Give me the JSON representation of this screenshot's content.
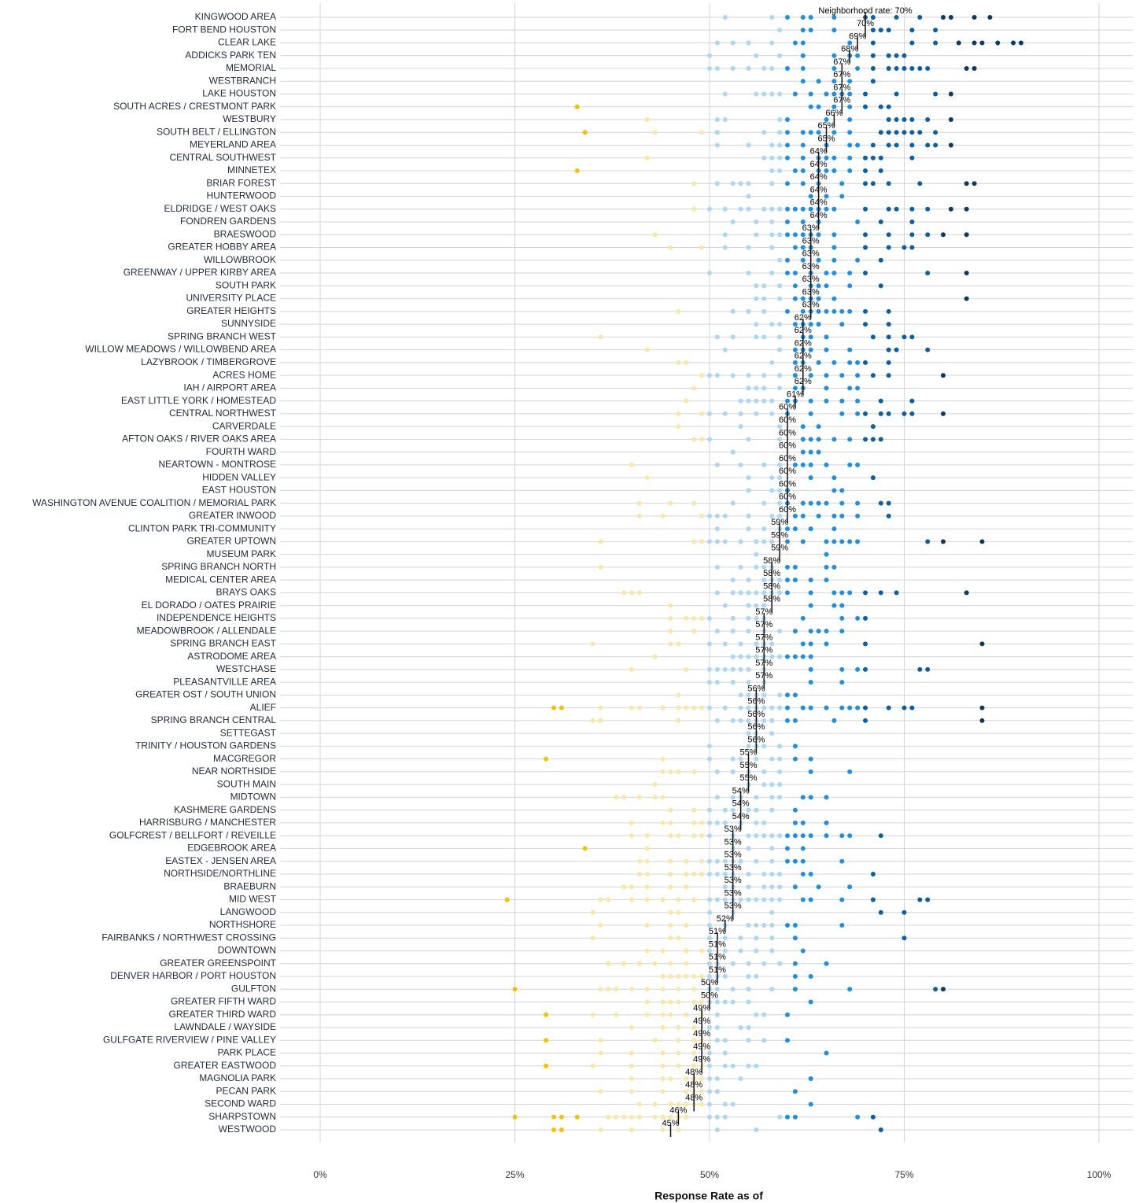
{
  "chart_data": {
    "type": "dot",
    "x_label": "Response Rate as of",
    "xlim": [
      0,
      100
    ],
    "xticks": [
      {
        "value": 0,
        "label": "0%"
      },
      {
        "value": 25,
        "label": "25%"
      },
      {
        "value": 50,
        "label": "50%"
      },
      {
        "value": 75,
        "label": "75%"
      },
      {
        "value": 100,
        "label": "100%"
      }
    ],
    "grid": true,
    "rate_color": "#111111",
    "color_breaks": [
      35,
      50,
      60,
      70,
      80
    ],
    "colors": [
      "#f2c300",
      "#fbe7a2",
      "#a9d7f6",
      "#1f8fe0",
      "#0d5fa3",
      "#0a3a65"
    ],
    "categories": [
      "KINGWOOD AREA",
      "FORT BEND HOUSTON",
      "CLEAR LAKE",
      "ADDICKS PARK TEN",
      "MEMORIAL",
      "WESTBRANCH",
      "LAKE HOUSTON",
      "SOUTH ACRES / CRESTMONT PARK",
      "WESTBURY",
      "SOUTH BELT / ELLINGTON",
      "MEYERLAND AREA",
      "CENTRAL SOUTHWEST",
      "MINNETEX",
      "BRIAR FOREST",
      "HUNTERWOOD",
      "ELDRIDGE / WEST OAKS",
      "FONDREN GARDENS",
      "BRAESWOOD",
      "GREATER HOBBY AREA",
      "WILLOWBROOK",
      "GREENWAY / UPPER KIRBY AREA",
      "SOUTH PARK",
      "UNIVERSITY PLACE",
      "GREATER HEIGHTS",
      "SUNNYSIDE",
      "SPRING BRANCH WEST",
      "WILLOW MEADOWS / WILLOWBEND AREA",
      "LAZYBROOK / TIMBERGROVE",
      "ACRES HOME",
      "IAH / AIRPORT AREA",
      "EAST LITTLE YORK / HOMESTEAD",
      "CENTRAL NORTHWEST",
      "CARVERDALE",
      "AFTON OAKS / RIVER OAKS AREA",
      "FOURTH WARD",
      "NEARTOWN - MONTROSE",
      "HIDDEN VALLEY",
      "EAST HOUSTON",
      "WASHINGTON AVENUE COALITION / MEMORIAL PARK",
      "GREATER INWOOD",
      "CLINTON PARK TRI-COMMUNITY",
      "GREATER UPTOWN",
      "MUSEUM PARK",
      "SPRING BRANCH NORTH",
      "MEDICAL CENTER AREA",
      "BRAYS OAKS",
      "EL DORADO / OATES PRAIRIE",
      "INDEPENDENCE HEIGHTS",
      "MEADOWBROOK / ALLENDALE",
      "SPRING BRANCH EAST",
      "ASTRODOME AREA",
      "WESTCHASE",
      "PLEASANTVILLE AREA",
      "GREATER OST / SOUTH UNION",
      "ALIEF",
      "SPRING BRANCH CENTRAL",
      "SETTEGAST",
      "TRINITY / HOUSTON GARDENS",
      "MACGREGOR",
      "NEAR NORTHSIDE",
      "SOUTH MAIN",
      "MIDTOWN",
      "KASHMERE GARDENS",
      "HARRISBURG / MANCHESTER",
      "GOLFCREST / BELLFORT / REVEILLE",
      "EDGEBROOK AREA",
      "EASTEX - JENSEN AREA",
      "NORTHSIDE/NORTHLINE",
      "BRAEBURN",
      "MID WEST",
      "LANGWOOD",
      "NORTHSHORE",
      "FAIRBANKS / NORTHWEST CROSSING",
      "DOWNTOWN",
      "GREATER GREENSPOINT",
      "DENVER HARBOR / PORT HOUSTON",
      "GULFTON",
      "GREATER FIFTH WARD",
      "GREATER THIRD WARD",
      "LAWNDALE / WAYSIDE",
      "GULFGATE RIVERVIEW / PINE VALLEY",
      "PARK PLACE",
      "GREATER EASTWOOD",
      "MAGNOLIA PARK",
      "PECAN PARK",
      "SECOND WARD",
      "SHARPSTOWN",
      "WESTWOOD"
    ],
    "values": [
      70,
      70,
      69,
      68,
      67,
      67,
      67,
      67,
      66,
      65,
      65,
      64,
      64,
      64,
      64,
      64,
      64,
      63,
      63,
      63,
      63,
      63,
      63,
      63,
      62,
      62,
      62,
      62,
      62,
      62,
      61,
      60,
      60,
      60,
      60,
      60,
      60,
      60,
      60,
      60,
      59,
      59,
      59,
      58,
      58,
      58,
      58,
      57,
      57,
      57,
      57,
      57,
      57,
      56,
      56,
      56,
      56,
      56,
      55,
      55,
      55,
      54,
      54,
      54,
      53,
      53,
      53,
      53,
      53,
      53,
      53,
      52,
      51,
      51,
      51,
      51,
      50,
      50,
      49,
      49,
      49,
      49,
      49,
      48,
      48,
      48,
      46,
      45
    ],
    "value_labels": [
      "Neighborhood rate: 70%",
      "70%",
      "69%",
      "68%",
      "67%",
      "67%",
      "67%",
      "67%",
      "66%",
      "65%",
      "65%",
      "64%",
      "64%",
      "64%",
      "64%",
      "64%",
      "64%",
      "63%",
      "63%",
      "63%",
      "63%",
      "63%",
      "63%",
      "63%",
      "62%",
      "62%",
      "62%",
      "62%",
      "62%",
      "62%",
      "61%",
      "60%",
      "60%",
      "60%",
      "60%",
      "60%",
      "60%",
      "60%",
      "60%",
      "60%",
      "59%",
      "59%",
      "59%",
      "58%",
      "58%",
      "58%",
      "58%",
      "57%",
      "57%",
      "57%",
      "57%",
      "57%",
      "57%",
      "56%",
      "56%",
      "56%",
      "56%",
      "56%",
      "55%",
      "55%",
      "55%",
      "54%",
      "54%",
      "54%",
      "53%",
      "53%",
      "53%",
      "53%",
      "53%",
      "53%",
      "53%",
      "52%",
      "51%",
      "51%",
      "51%",
      "51%",
      "50%",
      "50%",
      "49%",
      "49%",
      "49%",
      "49%",
      "49%",
      "48%",
      "48%",
      "48%",
      "46%",
      "45%"
    ],
    "points": [
      [
        52,
        58,
        60,
        62,
        63,
        66,
        70,
        71,
        74,
        77,
        80,
        81,
        84,
        86
      ],
      [
        59,
        62,
        63,
        66,
        71,
        72,
        73,
        76,
        79
      ],
      [
        51,
        53,
        55,
        58,
        61,
        62,
        68,
        71,
        76,
        79,
        82,
        84,
        85,
        87,
        89,
        90
      ],
      [
        50,
        56,
        59,
        62,
        66,
        68,
        69,
        71,
        73,
        74,
        75
      ],
      [
        50,
        51,
        53,
        55,
        57,
        58,
        60,
        62,
        66,
        69,
        71,
        73,
        74,
        75,
        76,
        77,
        78,
        83,
        84
      ],
      [
        62,
        64,
        66,
        68,
        71
      ],
      [
        52,
        56,
        57,
        58,
        59,
        61,
        63,
        65,
        66,
        67,
        68,
        70,
        74,
        79,
        81
      ],
      [
        33,
        63,
        64,
        66,
        68,
        70,
        72,
        73
      ],
      [
        42,
        51,
        52,
        59,
        60,
        65,
        68,
        73,
        74,
        75,
        76,
        78,
        81
      ],
      [
        34,
        43,
        49,
        51,
        57,
        59,
        60,
        62,
        63,
        64,
        66,
        68,
        72,
        73,
        74,
        75,
        76,
        77,
        79
      ],
      [
        51,
        55,
        58,
        59,
        60,
        62,
        65,
        68,
        69,
        71,
        73,
        74,
        76,
        78,
        79,
        81
      ],
      [
        42,
        57,
        58,
        59,
        60,
        62,
        64,
        65,
        66,
        68,
        70,
        71,
        72,
        76
      ],
      [
        33,
        58,
        59,
        61,
        62,
        64,
        65,
        66,
        68,
        70,
        72
      ],
      [
        48,
        51,
        53,
        54,
        55,
        58,
        60,
        62,
        64,
        67,
        70,
        71,
        73,
        77,
        83,
        84
      ],
      [
        55,
        63,
        65,
        67
      ],
      [
        48,
        50,
        52,
        54,
        55,
        57,
        58,
        59,
        60,
        61,
        62,
        63,
        64,
        65,
        66,
        70,
        73,
        74,
        76,
        78,
        81,
        83
      ],
      [
        53,
        56,
        58,
        60,
        62,
        64,
        69,
        72,
        76
      ],
      [
        43,
        52,
        56,
        58,
        59,
        60,
        61,
        62,
        63,
        64,
        66,
        70,
        73,
        76,
        78,
        80,
        83
      ],
      [
        45,
        49,
        52,
        55,
        58,
        61,
        62,
        63,
        66,
        70,
        73,
        75,
        76
      ],
      [
        59,
        60,
        62,
        64,
        66,
        69,
        72
      ],
      [
        50,
        55,
        58,
        60,
        61,
        63,
        65,
        66,
        68,
        70,
        78,
        83
      ],
      [
        56,
        57,
        59,
        61,
        63,
        64,
        65,
        68,
        72
      ],
      [
        56,
        57,
        59,
        61,
        62,
        63,
        64,
        66,
        83
      ],
      [
        46,
        53,
        55,
        57,
        60,
        62,
        63,
        64,
        65,
        66,
        67,
        68,
        70,
        73
      ],
      [
        56,
        58,
        59,
        61,
        62,
        63,
        64,
        67,
        70,
        73
      ],
      [
        36,
        51,
        53,
        56,
        57,
        59,
        62,
        63,
        65,
        71,
        73,
        75,
        76
      ],
      [
        42,
        52,
        59,
        61,
        62,
        63,
        65,
        68,
        73,
        74,
        78
      ],
      [
        46,
        47,
        58,
        61,
        62,
        64,
        66,
        68,
        69,
        70,
        73
      ],
      [
        49,
        50,
        51,
        53,
        55,
        57,
        59,
        61,
        63,
        65,
        67,
        69,
        71,
        73,
        80
      ],
      [
        48,
        55,
        56,
        57,
        59,
        61,
        62,
        65,
        68,
        69
      ],
      [
        47,
        54,
        55,
        56,
        57,
        58,
        60,
        61,
        63,
        65,
        67,
        69,
        72,
        76
      ],
      [
        46,
        49,
        50,
        52,
        54,
        56,
        58,
        60,
        63,
        67,
        69,
        70,
        72,
        73,
        75,
        76,
        80
      ],
      [
        46,
        54,
        59,
        62,
        64,
        71
      ],
      [
        48,
        49,
        50,
        55,
        59,
        62,
        63,
        64,
        66,
        68,
        70,
        71,
        72
      ],
      [
        53,
        62,
        63,
        64
      ],
      [
        40,
        51,
        54,
        57,
        59,
        61,
        62,
        63,
        65,
        68,
        69
      ],
      [
        42,
        55,
        58,
        59,
        63,
        66,
        71
      ],
      [
        55,
        58,
        59,
        60,
        66,
        67
      ],
      [
        41,
        45,
        48,
        53,
        57,
        59,
        60,
        62,
        63,
        64,
        65,
        67,
        69,
        72,
        73
      ],
      [
        41,
        44,
        49,
        50,
        51,
        52,
        55,
        58,
        59,
        61,
        62,
        64,
        66,
        67,
        69,
        73
      ],
      [
        51,
        55,
        57,
        59,
        60,
        61,
        63,
        66
      ],
      [
        36,
        48,
        49,
        50,
        51,
        52,
        54,
        56,
        57,
        58,
        60,
        62,
        65,
        66,
        67,
        68,
        69,
        78,
        80,
        85
      ],
      [
        56,
        65
      ],
      [
        36,
        51,
        54,
        56,
        57,
        58,
        60,
        61,
        65,
        66
      ],
      [
        53,
        55,
        57,
        58,
        59,
        60,
        61,
        63,
        65
      ],
      [
        39,
        40,
        41,
        51,
        53,
        54,
        55,
        56,
        57,
        58,
        59,
        60,
        63,
        66,
        67,
        68,
        70,
        72,
        74,
        83
      ],
      [
        45,
        52,
        55,
        56,
        57,
        63,
        66,
        67
      ],
      [
        45,
        47,
        48,
        49,
        50,
        53,
        55,
        56,
        57,
        62,
        67,
        69,
        70
      ],
      [
        45,
        48,
        51,
        53,
        55,
        57,
        59,
        61,
        63,
        64,
        65,
        67
      ],
      [
        35,
        45,
        46,
        50,
        52,
        54,
        56,
        57,
        58,
        62,
        63,
        65,
        70,
        85
      ],
      [
        43,
        53,
        54,
        55,
        56,
        57,
        58,
        59,
        60,
        61,
        62,
        63
      ],
      [
        40,
        47,
        50,
        51,
        52,
        53,
        54,
        55,
        57,
        63,
        67,
        69,
        70,
        77,
        78
      ],
      [
        50,
        51,
        53,
        55,
        57,
        63,
        67
      ],
      [
        46,
        54,
        55,
        56,
        57,
        59,
        60,
        61
      ],
      [
        30,
        31,
        36,
        40,
        41,
        44,
        46,
        47,
        48,
        49,
        50,
        52,
        54,
        55,
        56,
        57,
        58,
        59,
        60,
        62,
        63,
        65,
        67,
        68,
        69,
        70,
        73,
        75,
        76,
        85
      ],
      [
        35,
        36,
        46,
        51,
        53,
        54,
        55,
        56,
        57,
        58,
        60,
        61,
        66,
        70,
        85
      ],
      [
        55,
        56,
        58
      ],
      [
        50,
        55,
        56,
        57,
        59,
        61
      ],
      [
        29,
        44,
        50,
        53,
        54,
        56,
        58,
        59,
        61,
        63
      ],
      [
        44,
        45,
        46,
        48,
        51,
        53,
        55,
        57,
        59,
        63,
        68
      ],
      [
        43,
        55,
        57,
        58,
        59
      ],
      [
        38,
        39,
        41,
        43,
        44,
        51,
        53,
        54,
        56,
        58,
        59,
        62,
        63,
        65
      ],
      [
        45,
        48,
        50,
        52,
        53,
        55,
        56,
        58,
        61
      ],
      [
        40,
        44,
        45,
        48,
        49,
        50,
        51,
        52,
        54,
        56,
        57,
        61,
        62,
        65
      ],
      [
        40,
        42,
        45,
        46,
        48,
        49,
        50,
        53,
        55,
        56,
        57,
        58,
        59,
        60,
        61,
        62,
        63,
        65,
        67,
        68,
        72
      ],
      [
        34,
        42,
        53,
        55,
        58,
        60,
        62
      ],
      [
        41,
        42,
        45,
        47,
        49,
        50,
        51,
        52,
        53,
        54,
        56,
        58,
        60,
        61,
        62,
        67
      ],
      [
        41,
        42,
        45,
        47,
        48,
        49,
        50,
        51,
        52,
        53,
        55,
        57,
        58,
        59,
        62,
        63,
        71
      ],
      [
        39,
        40,
        42,
        45,
        47,
        52,
        53,
        55,
        57,
        58,
        59,
        61,
        64,
        68
      ],
      [
        24,
        36,
        37,
        40,
        42,
        44,
        46,
        48,
        50,
        51,
        52,
        53,
        54,
        55,
        56,
        57,
        58,
        59,
        62,
        63,
        67,
        71,
        77,
        78
      ],
      [
        35,
        45,
        46,
        50,
        53,
        58,
        72,
        75
      ],
      [
        36,
        42,
        45,
        47,
        50,
        52,
        55,
        56,
        57,
        58,
        60,
        61,
        67
      ],
      [
        35,
        45,
        46,
        50,
        52,
        54,
        56,
        58,
        61,
        75
      ],
      [
        42,
        44,
        47,
        49,
        50,
        52,
        54,
        56,
        58,
        62
      ],
      [
        37,
        39,
        41,
        43,
        45,
        47,
        50,
        51,
        53,
        55,
        57,
        59,
        61,
        65
      ],
      [
        44,
        45,
        46,
        47,
        48,
        49,
        50,
        51,
        52,
        55,
        56,
        61,
        63
      ],
      [
        25,
        36,
        37,
        38,
        40,
        42,
        44,
        46,
        48,
        50,
        51,
        53,
        55,
        58,
        61,
        68,
        79,
        80
      ],
      [
        42,
        44,
        45,
        46,
        48,
        49,
        50,
        51,
        52,
        53,
        55,
        63
      ],
      [
        29,
        35,
        38,
        42,
        44,
        45,
        47,
        49,
        51,
        56,
        57,
        60
      ],
      [
        40,
        44,
        46,
        48,
        50,
        51,
        54,
        55
      ],
      [
        29,
        36,
        43,
        46,
        48,
        49,
        51,
        52,
        55,
        57,
        60
      ],
      [
        36,
        40,
        44,
        46,
        48,
        50,
        52,
        65
      ],
      [
        29,
        35,
        40,
        44,
        46,
        48,
        49,
        50,
        52,
        53,
        55,
        56
      ],
      [
        40,
        44,
        45,
        47,
        48,
        49,
        50,
        51,
        54,
        63
      ],
      [
        36,
        40,
        44,
        47,
        48,
        49,
        50,
        51,
        61
      ],
      [
        41,
        43,
        45,
        46,
        47,
        48,
        49,
        50,
        52,
        53,
        63
      ],
      [
        25,
        30,
        31,
        33,
        37,
        38,
        39,
        40,
        41,
        43,
        44,
        45,
        46,
        47,
        50,
        51,
        52,
        59,
        60,
        61,
        69,
        71
      ],
      [
        30,
        31,
        36,
        40,
        44,
        46,
        51,
        56,
        72
      ]
    ]
  }
}
